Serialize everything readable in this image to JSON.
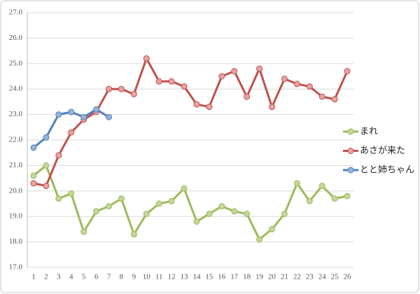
{
  "chart_data": {
    "type": "line",
    "categories": [
      "1",
      "2",
      "3",
      "4",
      "5",
      "6",
      "7",
      "8",
      "9",
      "10",
      "11",
      "12",
      "13",
      "14",
      "15",
      "16",
      "17",
      "18",
      "19",
      "20",
      "21",
      "22",
      "23",
      "24",
      "25",
      "26"
    ],
    "series": [
      {
        "name": "まれ",
        "color": "#9bbb59",
        "values": [
          20.6,
          21.0,
          19.7,
          19.9,
          18.4,
          19.2,
          19.4,
          19.7,
          18.3,
          19.1,
          19.5,
          19.6,
          20.1,
          18.8,
          19.1,
          19.4,
          19.2,
          19.1,
          18.1,
          18.5,
          19.1,
          20.3,
          19.6,
          20.2,
          19.7,
          19.8
        ]
      },
      {
        "name": "あさが来た",
        "color": "#c0504d",
        "values": [
          20.3,
          20.2,
          21.4,
          22.3,
          22.8,
          23.1,
          24.0,
          24.0,
          23.8,
          25.2,
          24.3,
          24.3,
          24.1,
          23.4,
          23.3,
          24.5,
          24.7,
          23.7,
          24.8,
          23.3,
          24.4,
          24.2,
          24.1,
          23.7,
          23.6,
          24.7
        ]
      },
      {
        "name": "とと姉ちゃん",
        "color": "#4f81bd",
        "values": [
          21.7,
          22.1,
          23.0,
          23.1,
          22.9,
          23.2,
          22.9,
          null,
          null,
          null,
          null,
          null,
          null,
          null,
          null,
          null,
          null,
          null,
          null,
          null,
          null,
          null,
          null,
          null,
          null,
          null
        ]
      }
    ],
    "ylim": [
      17,
      27
    ],
    "yticks": [
      {
        "value": 17,
        "label": "17.0"
      },
      {
        "value": 18,
        "label": "18.0"
      },
      {
        "value": 19,
        "label": "19.0"
      },
      {
        "value": 20,
        "label": "20.0"
      },
      {
        "value": 21,
        "label": "21.0"
      },
      {
        "value": 22,
        "label": "22.0"
      },
      {
        "value": 23,
        "label": "23.0"
      },
      {
        "value": 24,
        "label": "24.0"
      },
      {
        "value": 25,
        "label": "25.0"
      },
      {
        "value": 26,
        "label": "26.0"
      },
      {
        "value": 27,
        "label": "27.0"
      }
    ],
    "grid": true,
    "legend": "right"
  }
}
